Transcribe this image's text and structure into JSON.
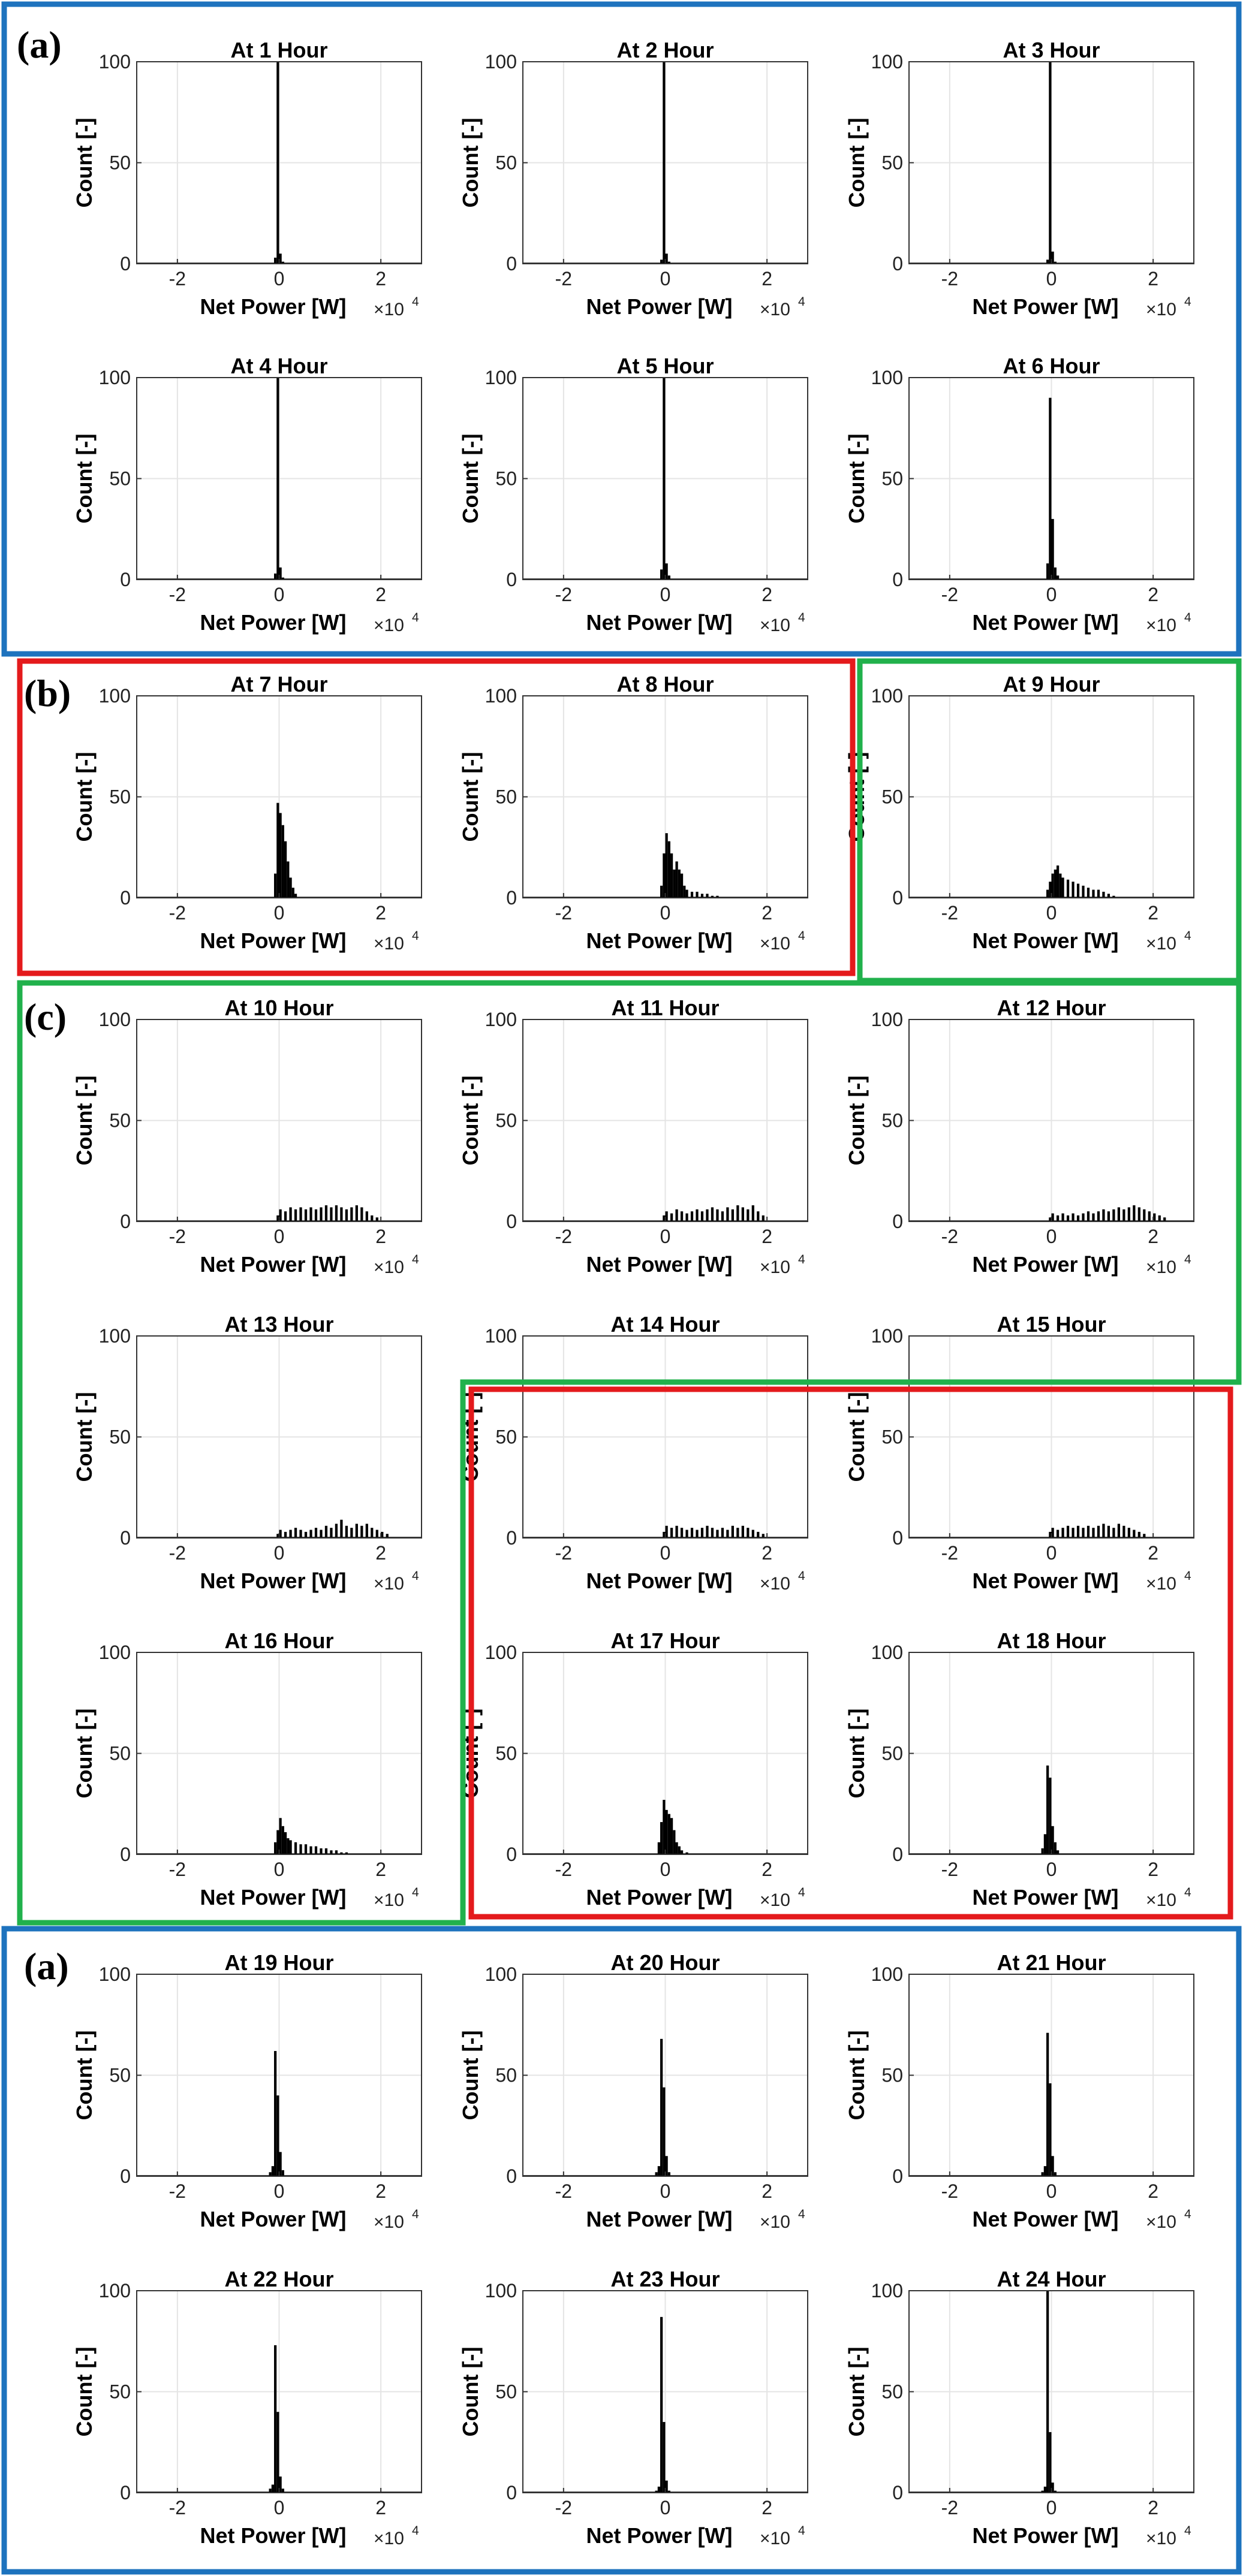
{
  "figure": {
    "colors": {
      "blue": "#1e73be",
      "red": "#e41a1c",
      "green": "#21b14c",
      "bars": "#000000",
      "grid": "#e4e4e4"
    },
    "group_labels": {
      "a": "(a)",
      "b": "(b)",
      "c": "(c)"
    }
  },
  "chart_data": {
    "type": "bar",
    "subtype": "histogram",
    "xlabel": "Net Power [W]",
    "ylabel": "Count [-]",
    "x_multiplier_base": "×10",
    "x_multiplier_exp": "4",
    "xlim": [
      -2.8,
      2.8
    ],
    "ylim": [
      0,
      100
    ],
    "xticks": [
      -2,
      0,
      2
    ],
    "xtick_labels": [
      "-2",
      "0",
      "2"
    ],
    "yticks": [
      0,
      50,
      100
    ],
    "ytick_labels": [
      "0",
      "50",
      "100"
    ],
    "grid": true,
    "bin_width": 0.05,
    "panels": [
      {
        "title": "At 1 Hour",
        "group": "a",
        "bins": [
          [
            -0.1,
            3
          ],
          [
            -0.05,
            100
          ],
          [
            0,
            5
          ],
          [
            0.05,
            1
          ]
        ]
      },
      {
        "title": "At 2 Hour",
        "group": "a",
        "bins": [
          [
            -0.1,
            2
          ],
          [
            -0.05,
            100
          ],
          [
            0,
            5
          ],
          [
            0.05,
            1
          ]
        ]
      },
      {
        "title": "At 3 Hour",
        "group": "a",
        "bins": [
          [
            -0.1,
            2
          ],
          [
            -0.05,
            100
          ],
          [
            0,
            6
          ],
          [
            0.05,
            1
          ]
        ]
      },
      {
        "title": "At 4 Hour",
        "group": "a",
        "bins": [
          [
            -0.1,
            3
          ],
          [
            -0.05,
            100
          ],
          [
            0,
            6
          ],
          [
            0.05,
            1
          ]
        ]
      },
      {
        "title": "At 5 Hour",
        "group": "a",
        "bins": [
          [
            -0.1,
            5
          ],
          [
            -0.05,
            100
          ],
          [
            0,
            8
          ],
          [
            0.05,
            2
          ]
        ]
      },
      {
        "title": "At 6 Hour",
        "group": "a",
        "bins": [
          [
            -0.1,
            8
          ],
          [
            -0.05,
            90
          ],
          [
            0,
            30
          ],
          [
            0.05,
            6
          ],
          [
            0.1,
            2
          ]
        ]
      },
      {
        "title": "At 7 Hour",
        "group": "b",
        "bins": [
          [
            -0.1,
            12
          ],
          [
            -0.05,
            47
          ],
          [
            0,
            42
          ],
          [
            0.05,
            36
          ],
          [
            0.1,
            28
          ],
          [
            0.15,
            18
          ],
          [
            0.2,
            10
          ],
          [
            0.25,
            5
          ],
          [
            0.3,
            2
          ]
        ]
      },
      {
        "title": "At 8 Hour",
        "group": "b",
        "bins": [
          [
            -0.1,
            6
          ],
          [
            -0.05,
            22
          ],
          [
            0,
            32
          ],
          [
            0.05,
            28
          ],
          [
            0.1,
            22
          ],
          [
            0.15,
            14
          ],
          [
            0.2,
            18
          ],
          [
            0.25,
            14
          ],
          [
            0.3,
            12
          ],
          [
            0.35,
            6
          ],
          [
            0.4,
            4
          ],
          [
            0.5,
            3
          ],
          [
            0.6,
            3
          ],
          [
            0.7,
            2
          ],
          [
            0.8,
            2
          ],
          [
            0.9,
            1
          ],
          [
            1.0,
            1
          ]
        ]
      },
      {
        "title": "At 9 Hour",
        "group": "c",
        "bins": [
          [
            -0.1,
            4
          ],
          [
            -0.05,
            8
          ],
          [
            0,
            12
          ],
          [
            0.05,
            14
          ],
          [
            0.1,
            16
          ],
          [
            0.15,
            12
          ],
          [
            0.2,
            10
          ],
          [
            0.3,
            9
          ],
          [
            0.4,
            8
          ],
          [
            0.5,
            7
          ],
          [
            0.6,
            6
          ],
          [
            0.7,
            5
          ],
          [
            0.8,
            4
          ],
          [
            0.9,
            4
          ],
          [
            1.0,
            3
          ],
          [
            1.1,
            2
          ],
          [
            1.2,
            1
          ]
        ]
      },
      {
        "title": "At 10 Hour",
        "group": "c",
        "bins": [
          [
            -0.05,
            3
          ],
          [
            0,
            6
          ],
          [
            0.1,
            5
          ],
          [
            0.2,
            7
          ],
          [
            0.3,
            6
          ],
          [
            0.4,
            7
          ],
          [
            0.5,
            6
          ],
          [
            0.6,
            7
          ],
          [
            0.7,
            6
          ],
          [
            0.8,
            7
          ],
          [
            0.9,
            8
          ],
          [
            1.0,
            7
          ],
          [
            1.1,
            8
          ],
          [
            1.2,
            7
          ],
          [
            1.3,
            6
          ],
          [
            1.4,
            7
          ],
          [
            1.5,
            8
          ],
          [
            1.6,
            7
          ],
          [
            1.7,
            5
          ],
          [
            1.8,
            3
          ],
          [
            1.9,
            2
          ]
        ]
      },
      {
        "title": "At 11 Hour",
        "group": "c",
        "bins": [
          [
            -0.05,
            3
          ],
          [
            0,
            5
          ],
          [
            0.1,
            4
          ],
          [
            0.2,
            6
          ],
          [
            0.3,
            5
          ],
          [
            0.4,
            4
          ],
          [
            0.5,
            5
          ],
          [
            0.6,
            6
          ],
          [
            0.7,
            5
          ],
          [
            0.8,
            6
          ],
          [
            0.9,
            7
          ],
          [
            1.0,
            6
          ],
          [
            1.1,
            5
          ],
          [
            1.2,
            7
          ],
          [
            1.3,
            6
          ],
          [
            1.4,
            8
          ],
          [
            1.5,
            7
          ],
          [
            1.6,
            6
          ],
          [
            1.7,
            8
          ],
          [
            1.8,
            5
          ],
          [
            1.9,
            3
          ]
        ]
      },
      {
        "title": "At 12 Hour",
        "group": "c",
        "bins": [
          [
            -0.05,
            2
          ],
          [
            0,
            4
          ],
          [
            0.1,
            3
          ],
          [
            0.2,
            4
          ],
          [
            0.3,
            3
          ],
          [
            0.4,
            4
          ],
          [
            0.5,
            3
          ],
          [
            0.6,
            4
          ],
          [
            0.7,
            5
          ],
          [
            0.8,
            4
          ],
          [
            0.9,
            5
          ],
          [
            1.0,
            6
          ],
          [
            1.1,
            5
          ],
          [
            1.2,
            6
          ],
          [
            1.3,
            7
          ],
          [
            1.4,
            6
          ],
          [
            1.5,
            7
          ],
          [
            1.6,
            8
          ],
          [
            1.7,
            7
          ],
          [
            1.8,
            6
          ],
          [
            1.9,
            5
          ],
          [
            2.0,
            4
          ],
          [
            2.1,
            3
          ],
          [
            2.2,
            2
          ]
        ]
      },
      {
        "title": "At 13 Hour",
        "group": "c",
        "bins": [
          [
            -0.05,
            2
          ],
          [
            0,
            4
          ],
          [
            0.1,
            3
          ],
          [
            0.2,
            4
          ],
          [
            0.3,
            5
          ],
          [
            0.4,
            4
          ],
          [
            0.5,
            3
          ],
          [
            0.6,
            4
          ],
          [
            0.7,
            5
          ],
          [
            0.8,
            4
          ],
          [
            0.9,
            6
          ],
          [
            1.0,
            5
          ],
          [
            1.1,
            7
          ],
          [
            1.2,
            9
          ],
          [
            1.3,
            6
          ],
          [
            1.4,
            5
          ],
          [
            1.5,
            7
          ],
          [
            1.6,
            6
          ],
          [
            1.7,
            7
          ],
          [
            1.8,
            5
          ],
          [
            1.9,
            4
          ],
          [
            2.0,
            3
          ],
          [
            2.1,
            2
          ]
        ]
      },
      {
        "title": "At 14 Hour",
        "group": "c",
        "bins": [
          [
            -0.05,
            3
          ],
          [
            0,
            6
          ],
          [
            0.1,
            5
          ],
          [
            0.2,
            6
          ],
          [
            0.3,
            5
          ],
          [
            0.4,
            4
          ],
          [
            0.5,
            5
          ],
          [
            0.6,
            4
          ],
          [
            0.7,
            5
          ],
          [
            0.8,
            6
          ],
          [
            0.9,
            5
          ],
          [
            1.0,
            4
          ],
          [
            1.1,
            5
          ],
          [
            1.2,
            4
          ],
          [
            1.3,
            6
          ],
          [
            1.4,
            5
          ],
          [
            1.5,
            6
          ],
          [
            1.6,
            5
          ],
          [
            1.7,
            4
          ],
          [
            1.8,
            3
          ],
          [
            1.9,
            2
          ]
        ]
      },
      {
        "title": "At 15 Hour",
        "group": "c",
        "bins": [
          [
            -0.05,
            3
          ],
          [
            0,
            5
          ],
          [
            0.1,
            4
          ],
          [
            0.2,
            5
          ],
          [
            0.3,
            6
          ],
          [
            0.4,
            5
          ],
          [
            0.5,
            6
          ],
          [
            0.6,
            5
          ],
          [
            0.7,
            6
          ],
          [
            0.8,
            5
          ],
          [
            0.9,
            6
          ],
          [
            1.0,
            7
          ],
          [
            1.1,
            6
          ],
          [
            1.2,
            5
          ],
          [
            1.3,
            7
          ],
          [
            1.4,
            6
          ],
          [
            1.5,
            5
          ],
          [
            1.6,
            4
          ],
          [
            1.7,
            3
          ],
          [
            1.8,
            2
          ]
        ]
      },
      {
        "title": "At 16 Hour",
        "group": "c",
        "bins": [
          [
            -0.1,
            6
          ],
          [
            -0.05,
            12
          ],
          [
            0,
            18
          ],
          [
            0.05,
            14
          ],
          [
            0.1,
            11
          ],
          [
            0.15,
            8
          ],
          [
            0.2,
            7
          ],
          [
            0.3,
            6
          ],
          [
            0.4,
            5
          ],
          [
            0.5,
            5
          ],
          [
            0.6,
            4
          ],
          [
            0.7,
            4
          ],
          [
            0.8,
            3
          ],
          [
            0.9,
            3
          ],
          [
            1.0,
            2
          ],
          [
            1.1,
            2
          ],
          [
            1.2,
            1
          ],
          [
            1.3,
            1
          ]
        ]
      },
      {
        "title": "At 17 Hour",
        "group": "b",
        "bins": [
          [
            -0.15,
            6
          ],
          [
            -0.1,
            16
          ],
          [
            -0.05,
            27
          ],
          [
            0,
            22
          ],
          [
            0.05,
            20
          ],
          [
            0.1,
            18
          ],
          [
            0.15,
            12
          ],
          [
            0.2,
            6
          ],
          [
            0.25,
            4
          ],
          [
            0.3,
            2
          ],
          [
            0.4,
            1
          ]
        ]
      },
      {
        "title": "At 18 Hour",
        "group": "b",
        "bins": [
          [
            -0.2,
            3
          ],
          [
            -0.15,
            10
          ],
          [
            -0.1,
            44
          ],
          [
            -0.05,
            38
          ],
          [
            0,
            14
          ],
          [
            0.05,
            6
          ],
          [
            0.1,
            2
          ]
        ]
      },
      {
        "title": "At 19 Hour",
        "group": "a",
        "bins": [
          [
            -0.2,
            2
          ],
          [
            -0.15,
            5
          ],
          [
            -0.1,
            62
          ],
          [
            -0.05,
            40
          ],
          [
            0,
            12
          ],
          [
            0.05,
            3
          ]
        ]
      },
      {
        "title": "At 20 Hour",
        "group": "a",
        "bins": [
          [
            -0.2,
            2
          ],
          [
            -0.15,
            5
          ],
          [
            -0.1,
            68
          ],
          [
            -0.05,
            44
          ],
          [
            0,
            10
          ],
          [
            0.05,
            2
          ]
        ]
      },
      {
        "title": "At 21 Hour",
        "group": "a",
        "bins": [
          [
            -0.2,
            2
          ],
          [
            -0.15,
            5
          ],
          [
            -0.1,
            71
          ],
          [
            -0.05,
            46
          ],
          [
            0,
            10
          ],
          [
            0.05,
            2
          ]
        ]
      },
      {
        "title": "At 22 Hour",
        "group": "a",
        "bins": [
          [
            -0.2,
            2
          ],
          [
            -0.15,
            4
          ],
          [
            -0.1,
            73
          ],
          [
            -0.05,
            40
          ],
          [
            0,
            8
          ],
          [
            0.05,
            2
          ]
        ]
      },
      {
        "title": "At 23 Hour",
        "group": "a",
        "bins": [
          [
            -0.2,
            1
          ],
          [
            -0.15,
            3
          ],
          [
            -0.1,
            87
          ],
          [
            -0.05,
            35
          ],
          [
            0,
            6
          ],
          [
            0.05,
            1
          ]
        ]
      },
      {
        "title": "At 24 Hour",
        "group": "a",
        "bins": [
          [
            -0.2,
            1
          ],
          [
            -0.15,
            3
          ],
          [
            -0.1,
            100
          ],
          [
            -0.05,
            30
          ],
          [
            0,
            5
          ],
          [
            0.05,
            1
          ]
        ]
      }
    ]
  }
}
